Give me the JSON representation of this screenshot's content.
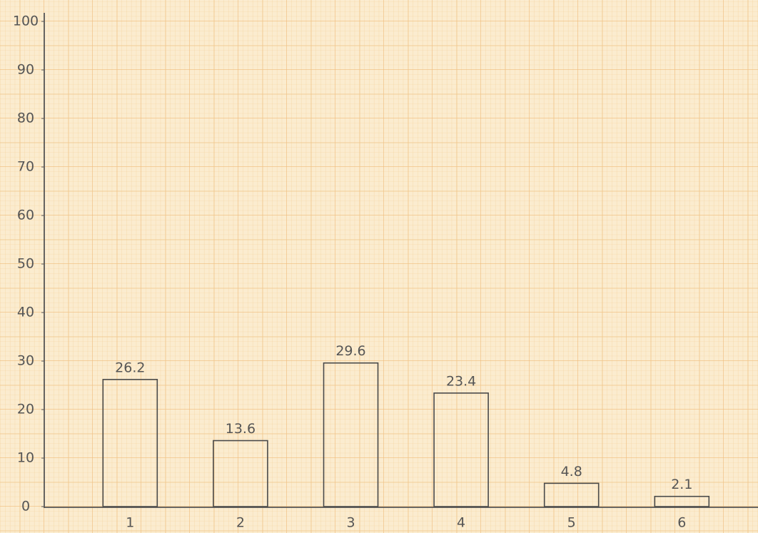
{
  "chart_data": {
    "type": "bar",
    "categories": [
      "1",
      "2",
      "3",
      "4",
      "5",
      "6"
    ],
    "values": [
      26.2,
      13.6,
      29.6,
      23.4,
      4.8,
      2.1
    ],
    "color": "#4a4a4a",
    "ylim": [
      0,
      100
    ],
    "yticks": [
      0,
      10,
      20,
      30,
      40,
      50,
      60,
      70,
      80,
      90,
      100
    ]
  }
}
